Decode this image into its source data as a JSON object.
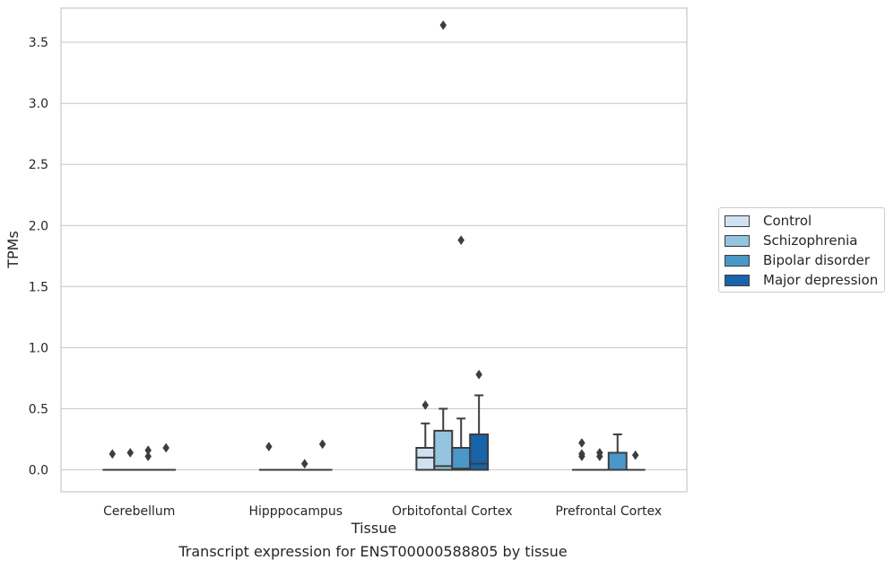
{
  "caption": "Transcript expression for ENST00000588805 by tissue",
  "chart_data": {
    "type": "box",
    "title": "",
    "xlabel": "Tissue",
    "ylabel": "TPMs",
    "ylim": [
      -0.18,
      3.78
    ],
    "yticks": [
      0.0,
      0.5,
      1.0,
      1.5,
      2.0,
      2.5,
      3.0,
      3.5
    ],
    "ytick_labels": [
      "0.0",
      "0.5",
      "1.0",
      "1.5",
      "2.0",
      "2.5",
      "3.0",
      "3.5"
    ],
    "grid": "horizontal",
    "legend_position": "right",
    "categories": [
      "Cerebellum",
      "Hipppocampus",
      "Orbitofontal Cortex",
      "Prefrontal Cortex"
    ],
    "series": [
      {
        "name": "Control",
        "color": "#d0e1f2",
        "boxes": [
          {
            "q1": 0.0,
            "median": 0.0,
            "q3": 0.0,
            "whisker_low": 0.0,
            "whisker_high": 0.0,
            "outliers": [
              0.13
            ]
          },
          {
            "q1": 0.0,
            "median": 0.0,
            "q3": 0.0,
            "whisker_low": 0.0,
            "whisker_high": 0.0,
            "outliers": [
              0.19
            ]
          },
          {
            "q1": 0.0,
            "median": 0.1,
            "q3": 0.18,
            "whisker_low": 0.0,
            "whisker_high": 0.38,
            "outliers": [
              0.53
            ]
          },
          {
            "q1": 0.0,
            "median": 0.0,
            "q3": 0.0,
            "whisker_low": 0.0,
            "whisker_high": 0.0,
            "outliers": [
              0.11,
              0.13,
              0.22
            ]
          }
        ]
      },
      {
        "name": "Schizophrenia",
        "color": "#94c4df",
        "boxes": [
          {
            "q1": 0.0,
            "median": 0.0,
            "q3": 0.0,
            "whisker_low": 0.0,
            "whisker_high": 0.0,
            "outliers": [
              0.14
            ]
          },
          {
            "q1": 0.0,
            "median": 0.0,
            "q3": 0.0,
            "whisker_low": 0.0,
            "whisker_high": 0.0,
            "outliers": []
          },
          {
            "q1": 0.0,
            "median": 0.03,
            "q3": 0.32,
            "whisker_low": 0.0,
            "whisker_high": 0.5,
            "outliers": [
              3.64
            ]
          },
          {
            "q1": 0.0,
            "median": 0.0,
            "q3": 0.0,
            "whisker_low": 0.0,
            "whisker_high": 0.0,
            "outliers": [
              0.11,
              0.14
            ]
          }
        ]
      },
      {
        "name": "Bipolar disorder",
        "color": "#4a98c9",
        "boxes": [
          {
            "q1": 0.0,
            "median": 0.0,
            "q3": 0.0,
            "whisker_low": 0.0,
            "whisker_high": 0.0,
            "outliers": [
              0.11,
              0.16
            ]
          },
          {
            "q1": 0.0,
            "median": 0.0,
            "q3": 0.0,
            "whisker_low": 0.0,
            "whisker_high": 0.0,
            "outliers": [
              0.05
            ]
          },
          {
            "q1": 0.0,
            "median": 0.01,
            "q3": 0.18,
            "whisker_low": 0.0,
            "whisker_high": 0.42,
            "outliers": [
              1.88
            ]
          },
          {
            "q1": 0.0,
            "median": 0.0,
            "q3": 0.14,
            "whisker_low": 0.0,
            "whisker_high": 0.29,
            "outliers": []
          }
        ]
      },
      {
        "name": "Major depression",
        "color": "#1764ab",
        "boxes": [
          {
            "q1": 0.0,
            "median": 0.0,
            "q3": 0.0,
            "whisker_low": 0.0,
            "whisker_high": 0.0,
            "outliers": [
              0.18
            ]
          },
          {
            "q1": 0.0,
            "median": 0.0,
            "q3": 0.0,
            "whisker_low": 0.0,
            "whisker_high": 0.0,
            "outliers": [
              0.21
            ]
          },
          {
            "q1": 0.0,
            "median": 0.05,
            "q3": 0.29,
            "whisker_low": 0.0,
            "whisker_high": 0.61,
            "outliers": [
              0.78
            ]
          },
          {
            "q1": 0.0,
            "median": 0.0,
            "q3": 0.0,
            "whisker_low": 0.0,
            "whisker_high": 0.0,
            "outliers": [
              0.12
            ]
          }
        ]
      }
    ]
  }
}
